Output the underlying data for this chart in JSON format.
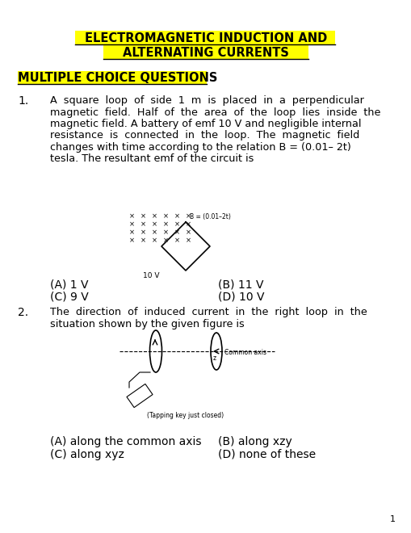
{
  "title_line1": "ELECTROMAGNETIC INDUCTION AND",
  "title_line2": "ALTERNATING CURRENTS",
  "section": "MULTIPLE CHOICE QUESTIONS",
  "q1_line1": "A  square  loop  of  side  1  m  is  placed  in  a  perpendicular",
  "q1_line2": "magnetic  field.  Half  of  the  area  of  the  loop  lies  inside  the",
  "q1_line3": "magnetic field. A battery of emf 10 V and negligible internal",
  "q1_line4": "resistance  is  connected  in  the  loop.  The  magnetic  field",
  "q1_line5": "changes with time according to the relation B = (0.01– 2t)",
  "q1_line6": "tesla. The resultant emf of the circuit is",
  "q1_A": "(A) 1 V",
  "q1_B": "(B) 11 V",
  "q1_C": "(C) 9 V",
  "q1_D": "(D) 10 V",
  "q2_line1": "The  direction  of  induced  current  in  the  right  loop  in  the",
  "q2_line2": "situation shown by the given figure is",
  "q2_A": "(A) along the common axis",
  "q2_B": "(B) along xzy",
  "q2_C": "(C) along xyz",
  "q2_D": "(D) none of these",
  "b_label": "B = (0.01–2t)",
  "volt_label": "10 V",
  "common_axis": "Common axis",
  "tapping": "(Tapping key just closed)",
  "page_number": "1",
  "highlight_color": "#FFFF00",
  "text_color": "#000000",
  "bg_color": "#FFFFFF"
}
